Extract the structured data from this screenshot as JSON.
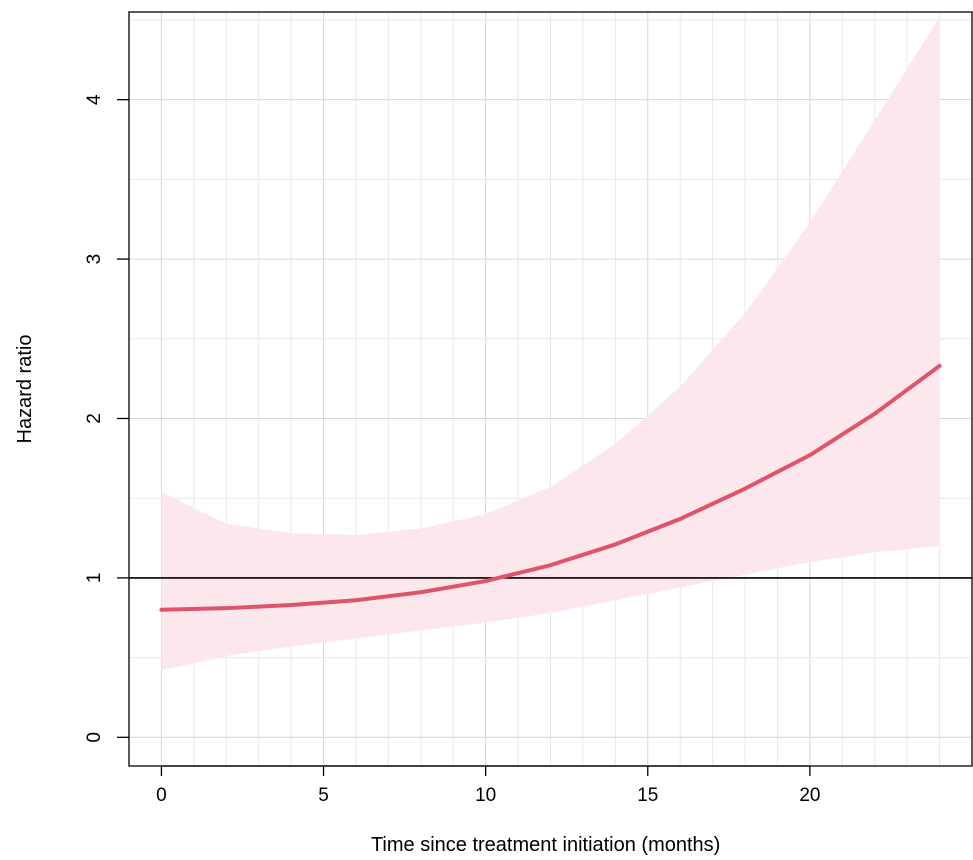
{
  "chart_data": {
    "type": "line",
    "title": "",
    "xlabel": "Time since treatment initiation (months)",
    "ylabel": "Hazard ratio",
    "xlim": [
      -1,
      25
    ],
    "ylim": [
      -0.18,
      4.55
    ],
    "x_ticks": [
      0,
      5,
      10,
      15,
      20
    ],
    "y_ticks": [
      0,
      1,
      2,
      3,
      4
    ],
    "grid": true,
    "reference_line": {
      "y": 1
    },
    "series": [
      {
        "color": "#df536b",
        "ribbon_color": "#fce8ec",
        "x": [
          0,
          2,
          4,
          6,
          8,
          10,
          12,
          14,
          16,
          18,
          20,
          22,
          24
        ],
        "y": [
          0.8,
          0.81,
          0.83,
          0.86,
          0.91,
          0.98,
          1.08,
          1.21,
          1.37,
          1.56,
          1.77,
          2.03,
          2.33
        ],
        "lower": [
          0.42,
          0.51,
          0.57,
          0.62,
          0.67,
          0.72,
          0.78,
          0.86,
          0.94,
          1.02,
          1.1,
          1.16,
          1.2
        ],
        "upper": [
          1.54,
          1.34,
          1.28,
          1.27,
          1.31,
          1.4,
          1.57,
          1.84,
          2.2,
          2.66,
          3.23,
          3.87,
          4.52
        ]
      }
    ]
  }
}
